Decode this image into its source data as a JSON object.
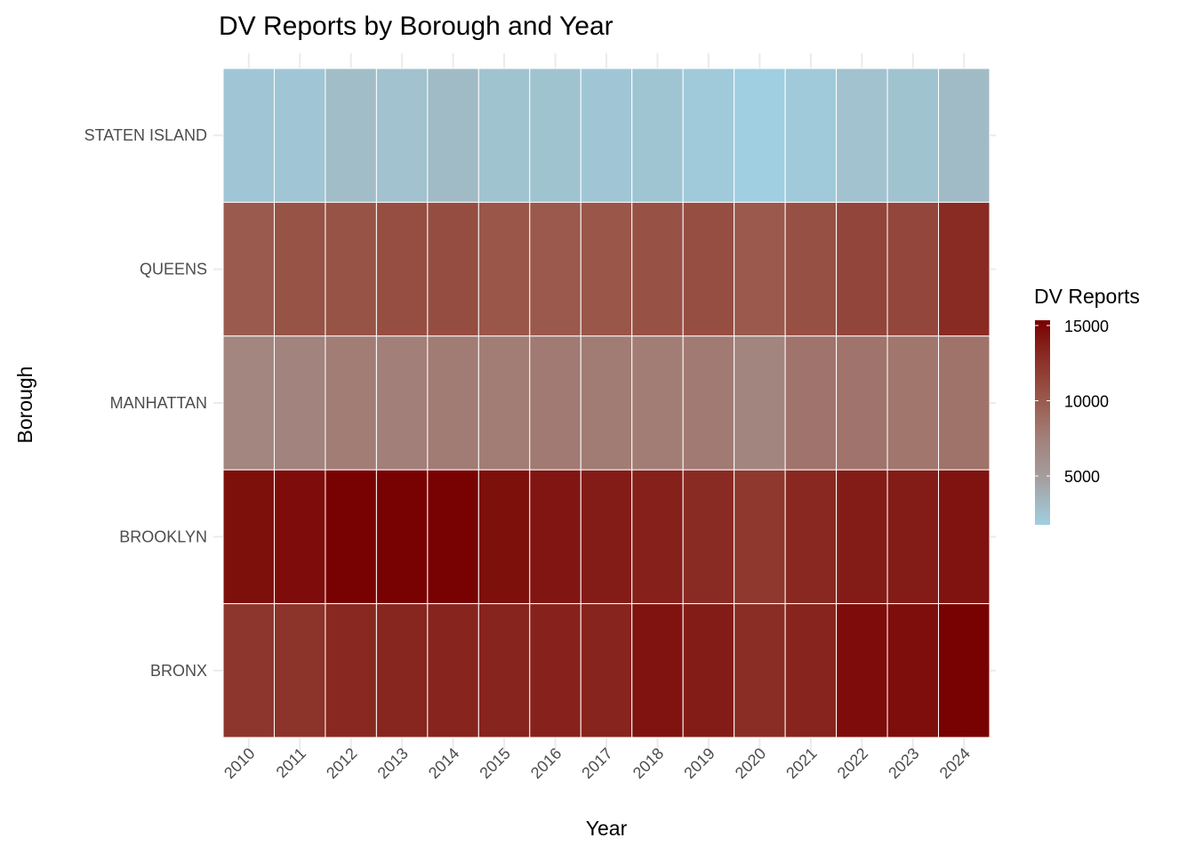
{
  "chart_data": {
    "type": "heatmap",
    "title": "DV Reports by Borough and Year",
    "xlabel": "Year",
    "ylabel": "Borough",
    "x": [
      "2010",
      "2011",
      "2012",
      "2013",
      "2014",
      "2015",
      "2016",
      "2017",
      "2018",
      "2019",
      "2020",
      "2021",
      "2022",
      "2023",
      "2024"
    ],
    "y": [
      "STATEN ISLAND",
      "QUEENS",
      "MANHATTAN",
      "BROOKLYN",
      "BRONX"
    ],
    "values": [
      [
        2300,
        2300,
        2900,
        2600,
        3000,
        2500,
        2500,
        2300,
        2400,
        2100,
        1750,
        2100,
        2600,
        2500,
        3000
      ],
      [
        10000,
        10500,
        10500,
        10800,
        10900,
        10300,
        10100,
        10300,
        10600,
        10800,
        10100,
        10700,
        11400,
        11300,
        13000
      ],
      [
        7000,
        7200,
        7700,
        7600,
        7800,
        7700,
        7900,
        7800,
        7700,
        7900,
        7100,
        8300,
        8300,
        8200,
        8400
      ],
      [
        14500,
        14700,
        15300,
        15300,
        15300,
        14500,
        14200,
        13800,
        13600,
        13000,
        12200,
        13200,
        13800,
        13800,
        14300
      ],
      [
        12300,
        12500,
        13200,
        13300,
        13400,
        13400,
        13500,
        13400,
        14300,
        13800,
        12900,
        13400,
        14700,
        14600,
        15300
      ]
    ],
    "legend": {
      "title": "DV Reports",
      "ticks": [
        5000,
        10000,
        15000
      ],
      "tick_labels": [
        "5000",
        "10000",
        "15000"
      ],
      "range": [
        1750,
        15350
      ],
      "position": "right"
    },
    "colors": {
      "low": "#9fcfe0",
      "mid": "#a59c9c",
      "high": "#780000"
    },
    "grid": true
  }
}
